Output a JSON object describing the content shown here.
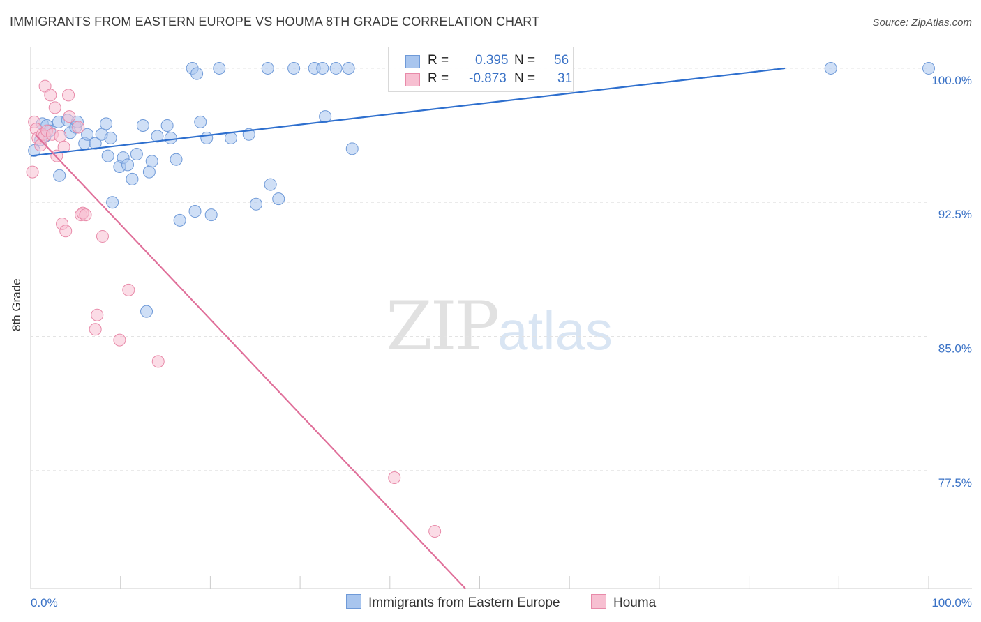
{
  "header": {
    "title": "IMMIGRANTS FROM EASTERN EUROPE VS HOUMA 8TH GRADE CORRELATION CHART",
    "source": "Source: ZipAtlas.com"
  },
  "legend": {
    "rows": [
      {
        "r_label": "R =",
        "r_value": "0.395",
        "n_label": "N =",
        "n_value": "56",
        "color": "#a8c5ee",
        "border": "#6f9ad8",
        "text_color": "#3a72c6"
      },
      {
        "r_label": "R =",
        "r_value": "-0.873",
        "n_label": "N =",
        "n_value": "31",
        "color": "#f7bfd1",
        "border": "#e88aa9",
        "text_color": "#3a72c6"
      }
    ],
    "bottom": [
      {
        "label": "Immigrants from Eastern Europe",
        "color": "#a8c5ee",
        "border": "#6f9ad8"
      },
      {
        "label": "Houma",
        "color": "#f7bfd1",
        "border": "#e88aa9"
      }
    ]
  },
  "watermark": {
    "zip": "ZIP",
    "atlas": "atlas"
  },
  "chart_data": {
    "type": "scatter",
    "title": "IMMIGRANTS FROM EASTERN EUROPE VS HOUMA 8TH GRADE CORRELATION CHART",
    "xlabel": "",
    "ylabel": "8th Grade",
    "xlim": [
      0,
      100
    ],
    "ylim": [
      70.9,
      100.7
    ],
    "x_tick_labels": [
      "0.0%",
      "100.0%"
    ],
    "y_ticks": [
      77.5,
      85.0,
      92.5,
      100.0
    ],
    "y_tick_labels": [
      "77.5%",
      "85.0%",
      "92.5%",
      "100.0%"
    ],
    "grid": true,
    "legend_position": "top-center",
    "series": [
      {
        "name": "Immigrants from Eastern Europe",
        "color": "#6f9ad8",
        "fill": "#a8c5ee",
        "trend": {
          "x": [
            0,
            84.0
          ],
          "y": [
            95.1,
            100.0
          ],
          "color": "#2e6fce"
        },
        "points": [
          [
            0.4,
            95.4
          ],
          [
            1.1,
            96.0
          ],
          [
            1.3,
            96.9
          ],
          [
            1.6,
            96.2
          ],
          [
            1.8,
            96.8
          ],
          [
            2.1,
            96.5
          ],
          [
            3.1,
            97.0
          ],
          [
            3.2,
            94.0
          ],
          [
            4.1,
            97.1
          ],
          [
            4.4,
            96.4
          ],
          [
            5.0,
            96.7
          ],
          [
            5.2,
            97.0
          ],
          [
            6.0,
            95.8
          ],
          [
            6.3,
            96.3
          ],
          [
            7.2,
            95.8
          ],
          [
            7.9,
            96.3
          ],
          [
            8.4,
            96.9
          ],
          [
            8.6,
            95.1
          ],
          [
            8.9,
            96.1
          ],
          [
            9.1,
            92.5
          ],
          [
            9.9,
            94.5
          ],
          [
            10.3,
            95.0
          ],
          [
            10.8,
            94.6
          ],
          [
            11.3,
            93.8
          ],
          [
            11.8,
            95.2
          ],
          [
            12.5,
            96.8
          ],
          [
            12.9,
            86.4
          ],
          [
            13.2,
            94.2
          ],
          [
            13.5,
            94.8
          ],
          [
            14.1,
            96.2
          ],
          [
            15.2,
            96.8
          ],
          [
            15.6,
            96.1
          ],
          [
            16.2,
            94.9
          ],
          [
            16.6,
            91.5
          ],
          [
            18.0,
            100.0
          ],
          [
            18.3,
            92.0
          ],
          [
            18.5,
            99.7
          ],
          [
            18.9,
            97.0
          ],
          [
            19.6,
            96.1
          ],
          [
            20.1,
            91.8
          ],
          [
            21.0,
            100.0
          ],
          [
            22.3,
            96.1
          ],
          [
            24.3,
            96.3
          ],
          [
            25.1,
            92.4
          ],
          [
            26.4,
            100.0
          ],
          [
            26.7,
            93.5
          ],
          [
            27.6,
            92.7
          ],
          [
            29.3,
            100.0
          ],
          [
            31.6,
            100.0
          ],
          [
            32.5,
            100.0
          ],
          [
            32.8,
            97.3
          ],
          [
            34.0,
            100.0
          ],
          [
            35.4,
            100.0
          ],
          [
            35.8,
            95.5
          ],
          [
            89.1,
            100.0
          ],
          [
            100.0,
            100.0
          ]
        ]
      },
      {
        "name": "Houma",
        "color": "#e88aa9",
        "fill": "#f7bfd1",
        "trend": {
          "x": [
            0.5,
            48.4
          ],
          "y": [
            96.3,
            70.9
          ],
          "color": "#e0709a"
        },
        "points": [
          [
            0.2,
            94.2
          ],
          [
            0.4,
            97.0
          ],
          [
            0.6,
            96.6
          ],
          [
            0.8,
            96.1
          ],
          [
            1.1,
            95.7
          ],
          [
            1.3,
            96.3
          ],
          [
            1.5,
            96.2
          ],
          [
            1.6,
            99.0
          ],
          [
            1.8,
            96.5
          ],
          [
            2.2,
            98.5
          ],
          [
            2.4,
            96.3
          ],
          [
            2.7,
            97.8
          ],
          [
            2.9,
            95.1
          ],
          [
            3.3,
            96.2
          ],
          [
            3.5,
            91.3
          ],
          [
            3.7,
            95.6
          ],
          [
            3.9,
            90.9
          ],
          [
            4.2,
            98.5
          ],
          [
            4.3,
            97.3
          ],
          [
            5.3,
            96.7
          ],
          [
            5.6,
            91.8
          ],
          [
            5.8,
            91.9
          ],
          [
            6.1,
            91.8
          ],
          [
            7.2,
            85.4
          ],
          [
            7.4,
            86.2
          ],
          [
            8.0,
            90.6
          ],
          [
            9.9,
            84.8
          ],
          [
            10.9,
            87.6
          ],
          [
            14.2,
            83.6
          ],
          [
            40.5,
            77.1
          ],
          [
            45.0,
            74.1
          ]
        ]
      }
    ]
  }
}
